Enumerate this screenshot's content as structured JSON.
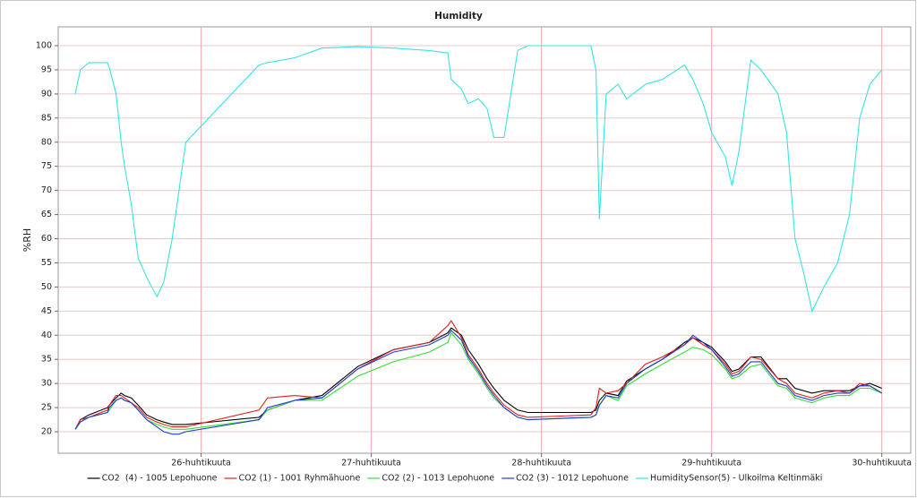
{
  "chart_data": {
    "type": "line",
    "title": "Humidity",
    "y_label": "%RH",
    "x": [
      25.26,
      25.29,
      25.34,
      25.45,
      25.46,
      25.5,
      25.53,
      25.55,
      25.59,
      25.63,
      25.68,
      25.74,
      25.78,
      25.83,
      25.87,
      25.91,
      26.34,
      26.39,
      26.55,
      26.71,
      26.92,
      27.13,
      27.34,
      27.45,
      27.47,
      27.53,
      27.57,
      27.63,
      27.68,
      27.72,
      27.78,
      27.82,
      27.86,
      27.92,
      28.29,
      28.32,
      28.34,
      28.38,
      28.45,
      28.5,
      28.61,
      28.71,
      28.84,
      28.89,
      28.95,
      29.0,
      29.08,
      29.12,
      29.16,
      29.23,
      29.29,
      29.39,
      29.44,
      29.49,
      29.54,
      29.59,
      29.66,
      29.74,
      29.81,
      29.87,
      29.93,
      30.0
    ],
    "series": [
      {
        "name": "CO2  (4) - 1005 Lepohuone",
        "color": "#000000",
        "values": [
          20.5,
          22.5,
          23.5,
          25,
          25.5,
          27,
          28,
          27.5,
          27,
          25.5,
          23.5,
          22.5,
          22,
          21.5,
          21.5,
          21.5,
          23,
          24.5,
          26.5,
          27.5,
          33.5,
          37,
          38.5,
          40.5,
          41.5,
          40,
          37,
          34,
          31,
          29,
          26.5,
          25.5,
          24.5,
          24,
          24,
          24.5,
          26.5,
          28,
          27.5,
          30.5,
          33,
          35,
          38.5,
          39.5,
          38.5,
          37.5,
          34.5,
          32.5,
          33,
          35.5,
          35.5,
          31,
          31,
          29,
          28.5,
          28,
          28.5,
          28.5,
          28.5,
          29.5,
          30,
          29
        ]
      },
      {
        "name": "CO2 (1) - 1001 Ryhmähuone",
        "color": "#e02020",
        "values": [
          20.5,
          22.5,
          23,
          24.5,
          25.5,
          27.5,
          27.5,
          27,
          26,
          25,
          23,
          22,
          21.5,
          21,
          21,
          21,
          24.5,
          27,
          27.5,
          27,
          33,
          37,
          38.5,
          42,
          43,
          39.5,
          36,
          33,
          30,
          28,
          25.5,
          24.5,
          23.5,
          23,
          23.5,
          25,
          29,
          28,
          28.5,
          30,
          34,
          35.5,
          38,
          39.5,
          38,
          37,
          34,
          32,
          32.5,
          35.5,
          35,
          31,
          30,
          28,
          27.5,
          27,
          28,
          28.5,
          28,
          30,
          29.5,
          28
        ]
      },
      {
        "name": "CO2 (2) - 1013 Lepohuone",
        "color": "#33dd33",
        "values": [
          20.5,
          22,
          23,
          24,
          24.5,
          26.5,
          27,
          26.5,
          26,
          24.5,
          22.5,
          21.5,
          21,
          20.5,
          20.5,
          20.5,
          22.5,
          24.5,
          26.5,
          26.5,
          31.5,
          34.5,
          36.5,
          38.5,
          40.5,
          38,
          35,
          32,
          29,
          27,
          25,
          24,
          23,
          22.5,
          23,
          23.5,
          25.5,
          27.5,
          26.5,
          29.5,
          32,
          34,
          36.5,
          37.5,
          37,
          36,
          33,
          31,
          31.5,
          33.5,
          34,
          29.5,
          29,
          27,
          26.5,
          26,
          27,
          27.5,
          27.5,
          29,
          29,
          28
        ]
      },
      {
        "name": "CO2 (3) - 1012 Lepohuone",
        "color": "#1c3fd0",
        "values": [
          20.5,
          22,
          23,
          24,
          25,
          26.5,
          27,
          26.5,
          26,
          24.5,
          22.5,
          21,
          20,
          19.5,
          19.5,
          20,
          22.5,
          25,
          26.5,
          27,
          33,
          36.5,
          38,
          40,
          41,
          39,
          35.5,
          32.5,
          29.5,
          27.5,
          25,
          24,
          23,
          22.5,
          23,
          23.5,
          25.5,
          27.5,
          27,
          30,
          33,
          35,
          38,
          40,
          38.5,
          37,
          33.5,
          31.5,
          32,
          34.5,
          34.5,
          30,
          29.5,
          27.5,
          27,
          26.5,
          27.5,
          28,
          28,
          29.5,
          29.5,
          28
        ]
      },
      {
        "name": "HumiditySensor(5) - Ulkoilma Keltinmäki",
        "color": "#33e5e5",
        "values": [
          90,
          95,
          96.5,
          96.5,
          95.5,
          90,
          80,
          75,
          67,
          56,
          52,
          48,
          51,
          60,
          70,
          80,
          96,
          96.5,
          97.5,
          99.5,
          99.8,
          99.5,
          99,
          98.5,
          93,
          91,
          88,
          89,
          87,
          81,
          81,
          90,
          99,
          100,
          100,
          95,
          64,
          90,
          92,
          89,
          92,
          93,
          96,
          93,
          88,
          82,
          77,
          71,
          78,
          97,
          95,
          90,
          82,
          60,
          53,
          45,
          50,
          55,
          65,
          85,
          92,
          95
        ]
      }
    ],
    "xlim": [
      25.16,
      30.17
    ],
    "xticks": [
      {
        "value": 26,
        "label": "26-huhtikuuta"
      },
      {
        "value": 27,
        "label": "27-huhtikuuta"
      },
      {
        "value": 28,
        "label": "28-huhtikuuta"
      },
      {
        "value": 29,
        "label": "29-huhtikuuta"
      },
      {
        "value": 30,
        "label": "30-huhtikuuta"
      }
    ],
    "ylim": [
      15.55,
      103.9
    ],
    "yticks": [
      20,
      25,
      30,
      35,
      40,
      45,
      50,
      55,
      60,
      65,
      70,
      75,
      80,
      85,
      90,
      95,
      100
    ],
    "grid": true,
    "legend": "bottom"
  }
}
